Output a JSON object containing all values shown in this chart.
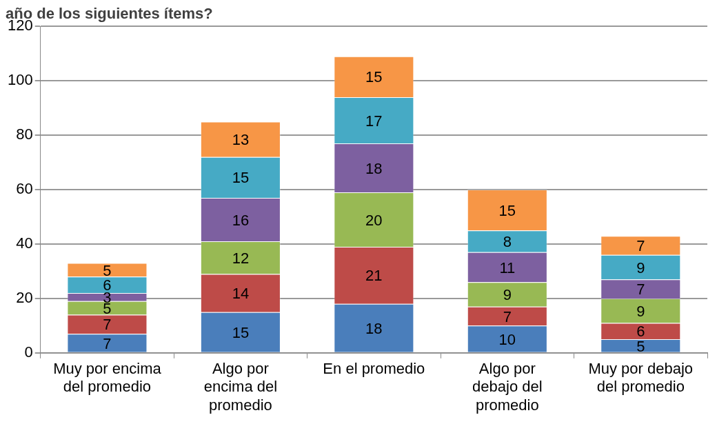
{
  "chart_data": {
    "type": "bar",
    "title": "año de los siguientes ítems?",
    "stacked": true,
    "data_labels": true,
    "grid": "y",
    "legend": false,
    "categories": [
      "Muy por encima del promedio",
      "Algo por encima del promedio",
      "En el promedio",
      "Algo por debajo del promedio",
      "Muy por debajo del promedio"
    ],
    "ylim": [
      0,
      120
    ],
    "yticks": [
      0,
      20,
      40,
      60,
      80,
      100,
      120
    ],
    "series": [
      {
        "color": "#4a7ebb",
        "values": [
          7,
          15,
          18,
          10,
          5
        ]
      },
      {
        "color": "#be4b48",
        "values": [
          7,
          14,
          21,
          7,
          6
        ]
      },
      {
        "color": "#98b954",
        "values": [
          5,
          12,
          20,
          9,
          9
        ]
      },
      {
        "color": "#7d60a0",
        "values": [
          3,
          16,
          18,
          11,
          7
        ]
      },
      {
        "color": "#46aac5",
        "values": [
          6,
          15,
          17,
          8,
          9
        ]
      },
      {
        "color": "#f79646",
        "values": [
          5,
          13,
          15,
          15,
          7
        ]
      }
    ]
  }
}
